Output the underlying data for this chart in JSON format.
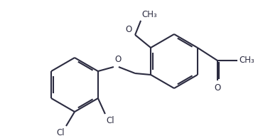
{
  "bg_color": "#ffffff",
  "line_color": "#2b2b40",
  "lw": 1.5,
  "fig_w": 3.63,
  "fig_h": 1.91,
  "dpi": 100,
  "ring_r": 0.38,
  "xlim": [
    0.0,
    3.63
  ],
  "ylim": [
    0.0,
    1.91
  ]
}
